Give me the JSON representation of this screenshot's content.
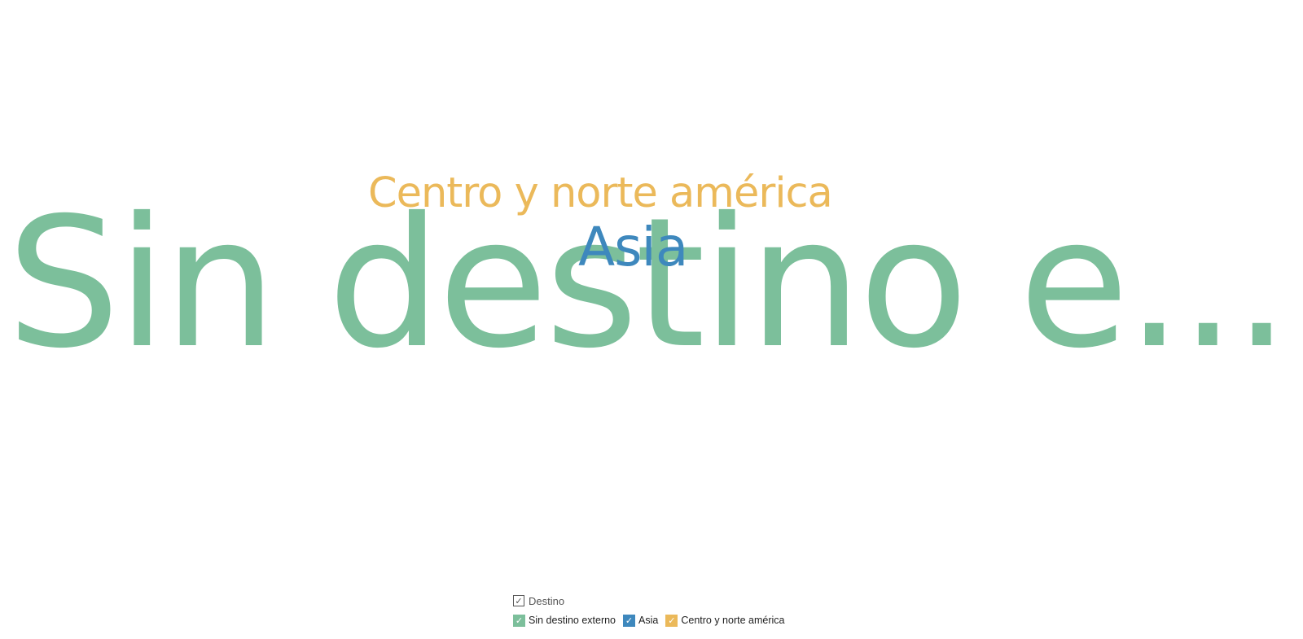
{
  "chart_data": {
    "type": "wordcloud",
    "words": [
      {
        "text": "Sin destino e...",
        "full_name": "Sin destino externo",
        "color": "#7cbf9b",
        "rank": 1
      },
      {
        "text": "Asia",
        "full_name": "Asia",
        "color": "#3e88bd",
        "rank": 3
      },
      {
        "text": "Centro y norte américa",
        "full_name": "Centro y norte américa",
        "color": "#ebb95a",
        "rank": 2
      }
    ],
    "legend": {
      "title": "Destino",
      "title_check": "✓",
      "items": [
        {
          "label": "Sin destino externo",
          "color": "#7cbf9b",
          "check": "✓"
        },
        {
          "label": "Asia",
          "color": "#3e88bd",
          "check": "✓"
        },
        {
          "label": "Centro y norte américa",
          "color": "#ebb95a",
          "check": "✓"
        }
      ],
      "placement": "bottom-center"
    }
  }
}
